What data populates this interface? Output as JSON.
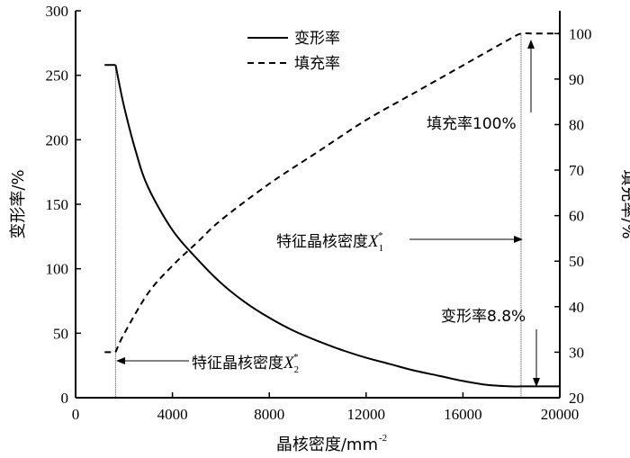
{
  "chart_data": {
    "type": "line",
    "x_label": "晶核密度/mm",
    "x_label_exp": "-2",
    "y_left_label": "变形率/%",
    "y_right_label": "填充率/%",
    "xlim": [
      0,
      20000
    ],
    "ylim_left": [
      0,
      300
    ],
    "ylim_right": [
      20,
      105
    ],
    "x_ticks": [
      0,
      4000,
      8000,
      12000,
      16000,
      20000
    ],
    "y_left_ticks": [
      0,
      50,
      100,
      150,
      200,
      250,
      300
    ],
    "y_right_ticks": [
      20,
      30,
      40,
      50,
      60,
      70,
      80,
      90,
      100
    ],
    "grid": false,
    "legend_position": "top-center",
    "series": [
      {
        "name": "变形率",
        "axis": "left",
        "style": "solid",
        "x": [
          1200,
          1650,
          2000,
          2500,
          3000,
          4000,
          5000,
          6000,
          7000,
          8000,
          9000,
          10000,
          11000,
          12000,
          13000,
          14000,
          15000,
          16000,
          17000,
          18000,
          18400,
          19000,
          20000
        ],
        "y": [
          258,
          258,
          226,
          190,
          163,
          130,
          108,
          89,
          74,
          62,
          52,
          44,
          37,
          31,
          26,
          21,
          17,
          13,
          10,
          8.8,
          8.8,
          8.8,
          8.8
        ]
      },
      {
        "name": "填充率",
        "axis": "right",
        "style": "dashed",
        "x": [
          1200,
          1650,
          2000,
          3000,
          4000,
          5000,
          6000,
          8000,
          10000,
          12000,
          14000,
          16000,
          17000,
          18000,
          18400,
          19000,
          20000
        ],
        "y": [
          30,
          30,
          34,
          43,
          49,
          54,
          59,
          67,
          74,
          81,
          87,
          93,
          96,
          99,
          100,
          100,
          100
        ]
      }
    ],
    "annotations": {
      "fill_label": "填充率100%",
      "x1_label": "特征晶核密度",
      "x1_symbol": "X",
      "x1_sub": "1",
      "x1_sup": "*",
      "deform_label": "变形率8.8%",
      "x2_label": "特征晶核密度",
      "x2_symbol": "X",
      "x2_sub": "2",
      "x2_sup": "*",
      "x1_value": 18400,
      "x2_value": 1650
    }
  }
}
